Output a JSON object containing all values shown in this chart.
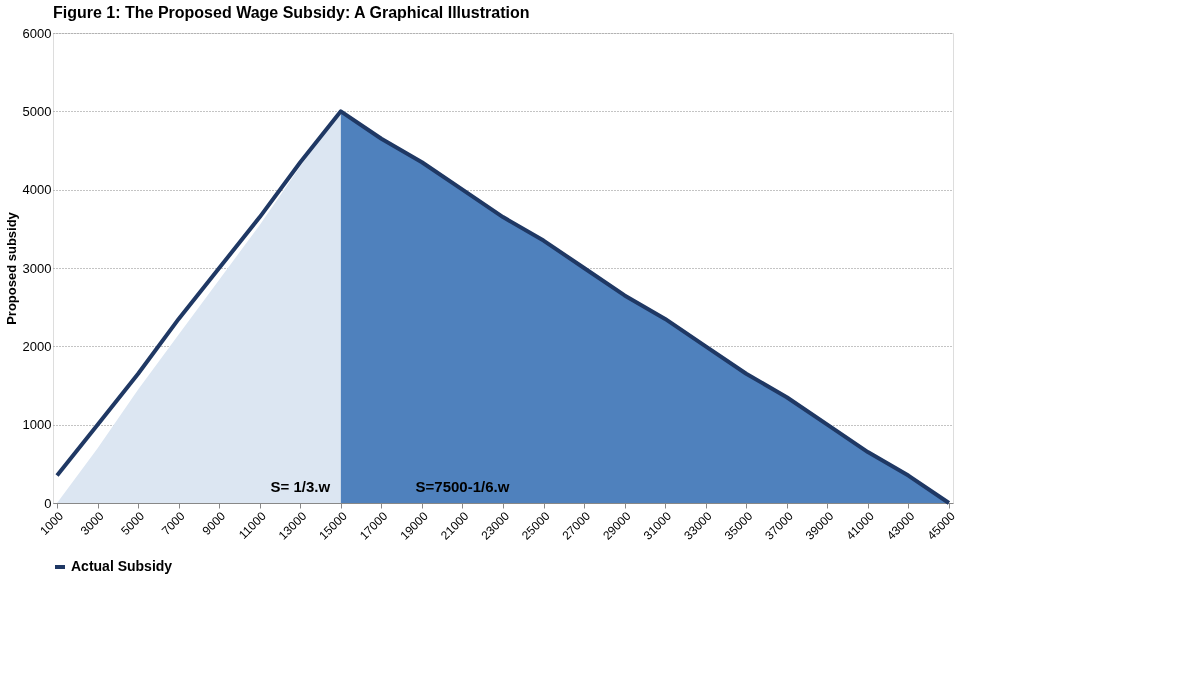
{
  "chart_data": {
    "type": "line",
    "title": "Figure 1:  The Proposed Wage Subsidy:  A Graphical Illustration",
    "ylabel": "Proposed  subsidy",
    "categories": [
      "1000",
      "3000",
      "5000",
      "7000",
      "9000",
      "11000",
      "13000",
      "15000",
      "17000",
      "19000",
      "21000",
      "23000",
      "25000",
      "27000",
      "29000",
      "31000",
      "33000",
      "35000",
      "37000",
      "39000",
      "41000",
      "43000",
      "45000"
    ],
    "series": [
      {
        "type": "area",
        "color": "#dce6f2",
        "values": [
          0,
          700,
          1450,
          2150,
          2850,
          3550,
          4300,
          5000,
          null,
          null,
          null,
          null,
          null,
          null,
          null,
          null,
          null,
          null,
          null,
          null,
          null,
          null,
          null
        ]
      },
      {
        "type": "area",
        "color": "#4f81bd",
        "values": [
          null,
          null,
          null,
          null,
          null,
          null,
          null,
          5000,
          4650,
          4350,
          4000,
          3650,
          3350,
          3000,
          2650,
          2350,
          2000,
          1650,
          1350,
          1000,
          650,
          350,
          0
        ]
      },
      {
        "name": "Actual Subsidy",
        "color": "#1f3864",
        "values": [
          350,
          1000,
          1650,
          2350,
          3000,
          3650,
          4350,
          5000,
          4650,
          4350,
          4000,
          3650,
          3350,
          3000,
          2650,
          2350,
          2000,
          1650,
          1350,
          1000,
          650,
          350,
          0
        ]
      }
    ],
    "annotations": [
      "S= 1/3.w",
      "S=7500-1/6.w"
    ],
    "ylim": [
      0,
      6000
    ],
    "yticks": [
      0,
      1000,
      2000,
      3000,
      4000,
      5000,
      6000
    ],
    "grid": "y",
    "legend": "bottom",
    "marker": "none",
    "line_style": "solid"
  }
}
